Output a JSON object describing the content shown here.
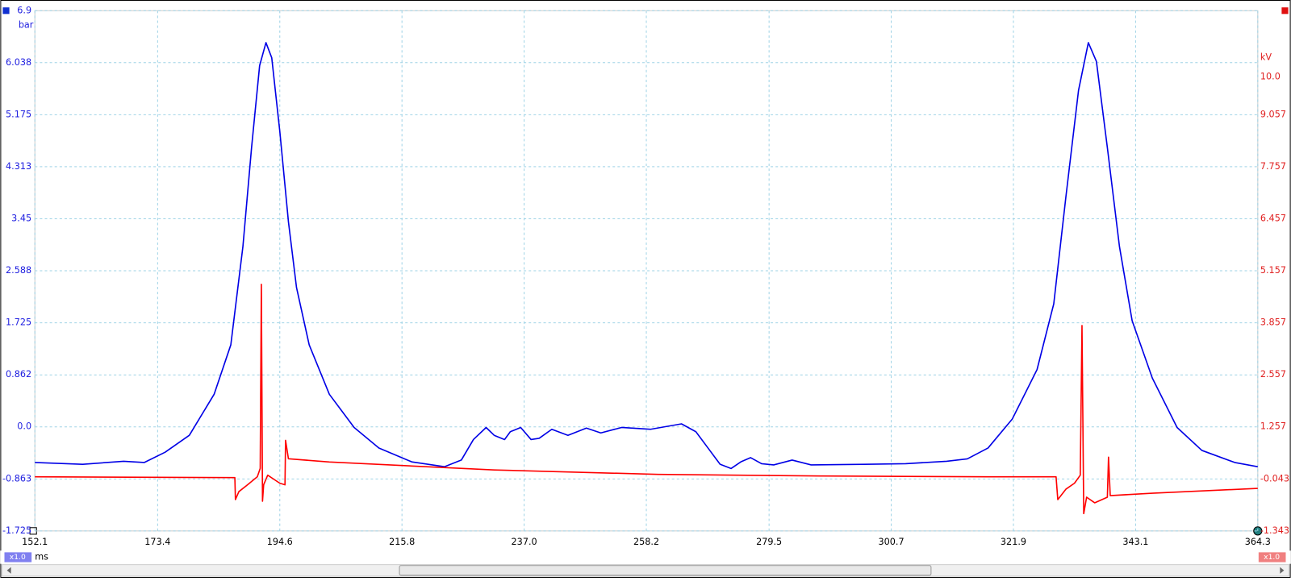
{
  "chart_data": {
    "type": "line",
    "x_label": "ms",
    "y_label": "bar",
    "y2_label": "kV",
    "xlim": [
      152.1,
      364.3
    ],
    "xticks": [
      152.1,
      173.4,
      194.6,
      215.8,
      {
        "value": 237,
        "label": "237.0"
      },
      258.2,
      279.5,
      300.7,
      321.9,
      343.1,
      364.3
    ],
    "ylim": [
      -1.725,
      6.9
    ],
    "yticks": [
      6.9,
      6.038,
      5.175,
      4.313,
      3.45,
      2.588,
      1.725,
      0.862,
      {
        "value": 0,
        "label": "0.0"
      },
      -0.863,
      -1.725
    ],
    "y2lim": [
      -1.343,
      11.657
    ],
    "y2ticks": [
      {
        "value": 10,
        "label": "10.0"
      },
      9.057,
      7.757,
      6.457,
      5.157,
      3.857,
      2.557,
      1.257,
      -0.043,
      -1.343
    ],
    "grid": true,
    "series": [
      {
        "color": "#0000e6",
        "x": [
          152.1,
          160.4,
          167.5,
          171.1,
          174.7,
          178.9,
          183.2,
          186.1,
          188.2,
          189.7,
          191.1,
          192.2,
          193.2,
          194.6,
          196.1,
          197.5,
          199.7,
          203.2,
          207.5,
          211.8,
          217.5,
          223.2,
          226.1,
          228.2,
          230.4,
          231.8,
          233.6,
          234.6,
          236.4,
          238.2,
          239.6,
          241.8,
          244.6,
          247.8,
          250.3,
          253.9,
          258.9,
          264.3,
          266.8,
          268.9,
          271.0,
          272.9,
          274.6,
          276.3,
          278.2,
          280.3,
          283.5,
          286.8,
          296.0,
          303.2,
          310.3,
          313.9,
          317.5,
          321.7,
          326.0,
          328.9,
          331.0,
          333.2,
          334.9,
          336.3,
          338.2,
          340.3,
          342.5,
          346.0,
          350.3,
          354.6,
          360.3,
          364.3
        ],
        "values": [
          -0.59,
          -0.62,
          -0.57,
          -0.59,
          -0.42,
          -0.14,
          0.54,
          1.36,
          2.99,
          4.63,
          5.99,
          6.37,
          6.12,
          4.9,
          3.4,
          2.31,
          1.36,
          0.54,
          -0.01,
          -0.35,
          -0.58,
          -0.66,
          -0.55,
          -0.21,
          -0.01,
          -0.14,
          -0.21,
          -0.08,
          -0.01,
          -0.21,
          -0.19,
          -0.04,
          -0.14,
          -0.02,
          -0.1,
          -0.01,
          -0.04,
          0.05,
          -0.08,
          -0.35,
          -0.62,
          -0.69,
          -0.58,
          -0.51,
          -0.61,
          -0.63,
          -0.55,
          -0.63,
          -0.62,
          -0.61,
          -0.57,
          -0.53,
          -0.35,
          0.13,
          0.95,
          2.04,
          3.81,
          5.58,
          6.37,
          6.06,
          4.63,
          2.99,
          1.76,
          0.81,
          -0.01,
          -0.39,
          -0.59,
          -0.66
        ]
      },
      {
        "color": "#ff0000",
        "axis": "y2",
        "x": [
          152.1,
          186.8,
          186.9,
          187.5,
          189.0,
          190.7,
          191.2,
          191.4,
          191.6,
          191.8,
          192.5,
          194.6,
          195.5,
          195.6,
          196.1,
          203.2,
          217.5,
          231.8,
          260.3,
          288.9,
          317.5,
          329.3,
          329.6,
          331.0,
          332.5,
          333.5,
          333.8,
          334.1,
          334.6,
          336.0,
          338.2,
          338.4,
          338.7,
          346.0,
          364.3
        ],
        "values": [
          0.01,
          -0.01,
          -0.56,
          -0.36,
          -0.19,
          0.01,
          0.22,
          4.82,
          -0.6,
          -0.19,
          0.05,
          -0.15,
          -0.19,
          0.92,
          0.46,
          0.38,
          0.28,
          0.18,
          0.07,
          0.03,
          0.01,
          0.01,
          -0.56,
          -0.3,
          -0.15,
          0.05,
          3.79,
          -0.91,
          -0.5,
          -0.64,
          -0.5,
          0.5,
          -0.46,
          -0.4,
          -0.28
        ]
      }
    ]
  },
  "ui": {
    "x_zoom": "x1.0",
    "y2_zoom": "x1.0"
  }
}
